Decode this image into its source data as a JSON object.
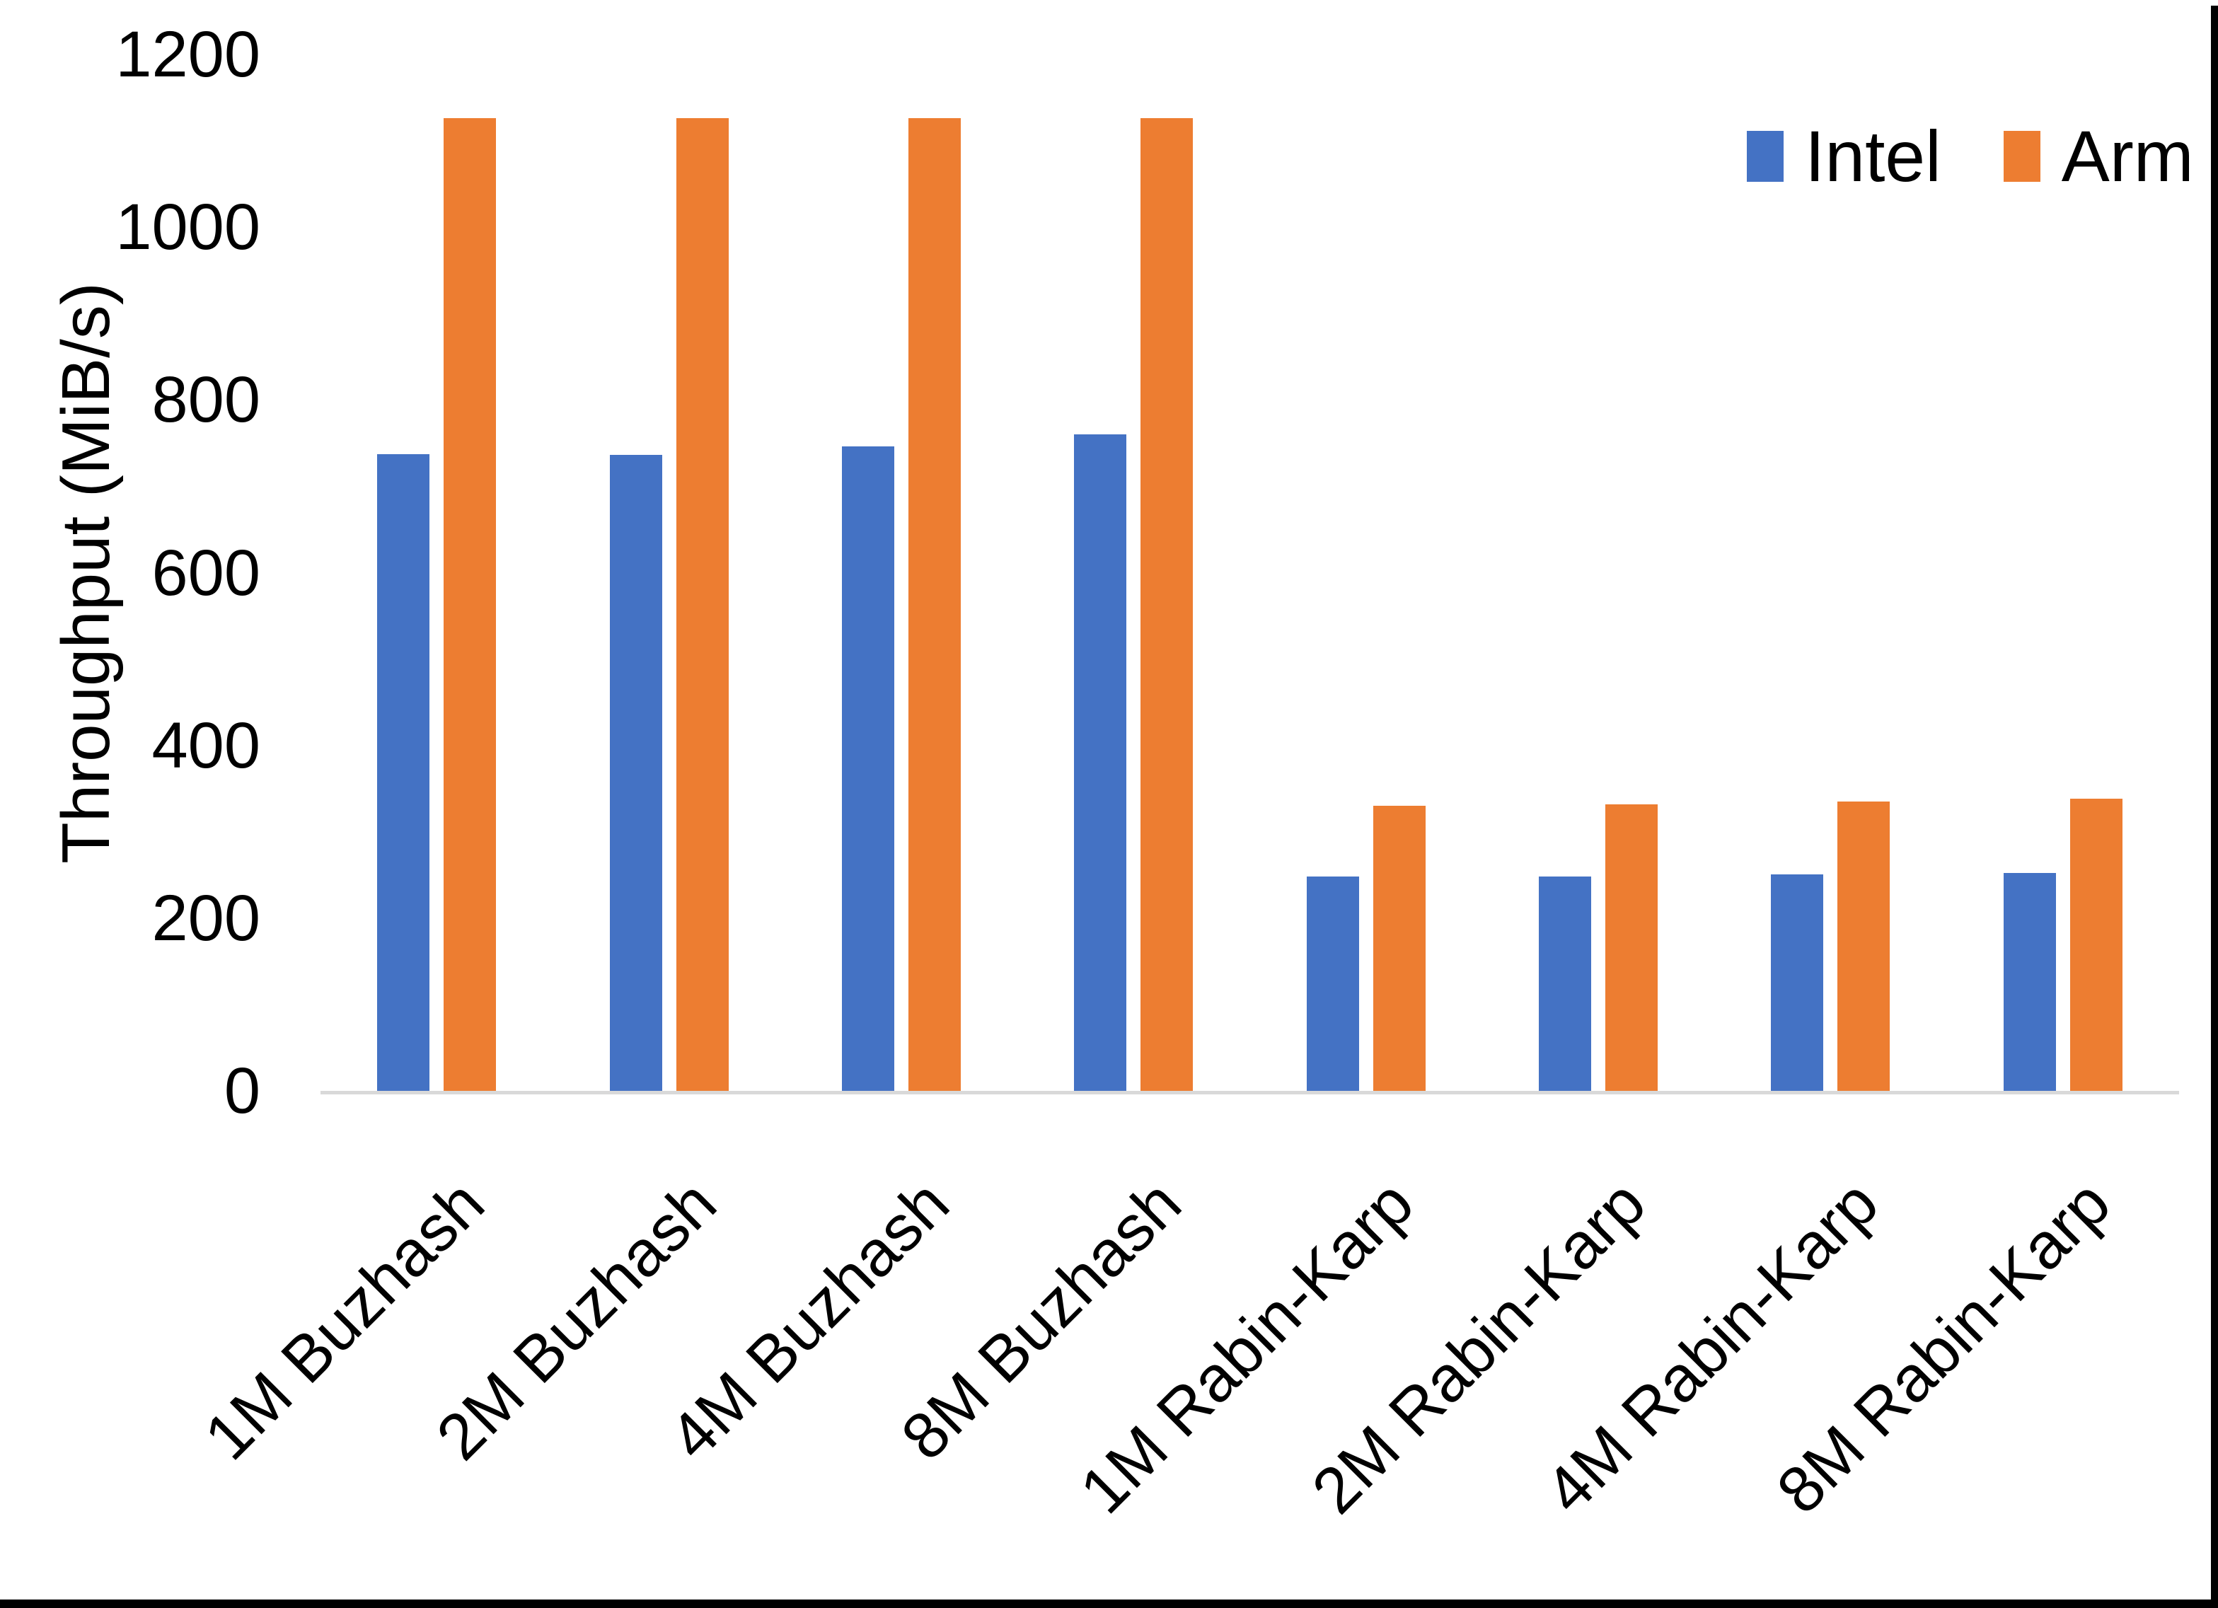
{
  "chart_data": {
    "type": "bar",
    "title": "",
    "xlabel": "",
    "ylabel": "Throughput (MiB/s)",
    "categories": [
      "1M Buzhash",
      "2M Buzhash",
      "4M Buzhash",
      "8M Buzhash",
      "1M Rabin-Karp",
      "2M Rabin-Karp",
      "4M Rabin-Karp",
      "8M Rabin-Karp"
    ],
    "series": [
      {
        "name": "Intel",
        "color": "#4472C4",
        "values": [
          737,
          736,
          746,
          760,
          248,
          248,
          251,
          252
        ]
      },
      {
        "name": "Arm",
        "color": "#ED7D31",
        "values": [
          1126,
          1126,
          1126,
          1126,
          330,
          332,
          335,
          338
        ]
      }
    ],
    "ylim": [
      0,
      1200
    ],
    "yticks": [
      0,
      200,
      400,
      600,
      800,
      1000,
      1200
    ],
    "grid": false,
    "legend_position": "top-right",
    "axis_line_color": "#D9D9D9",
    "x_label_rotation_deg": 45
  }
}
